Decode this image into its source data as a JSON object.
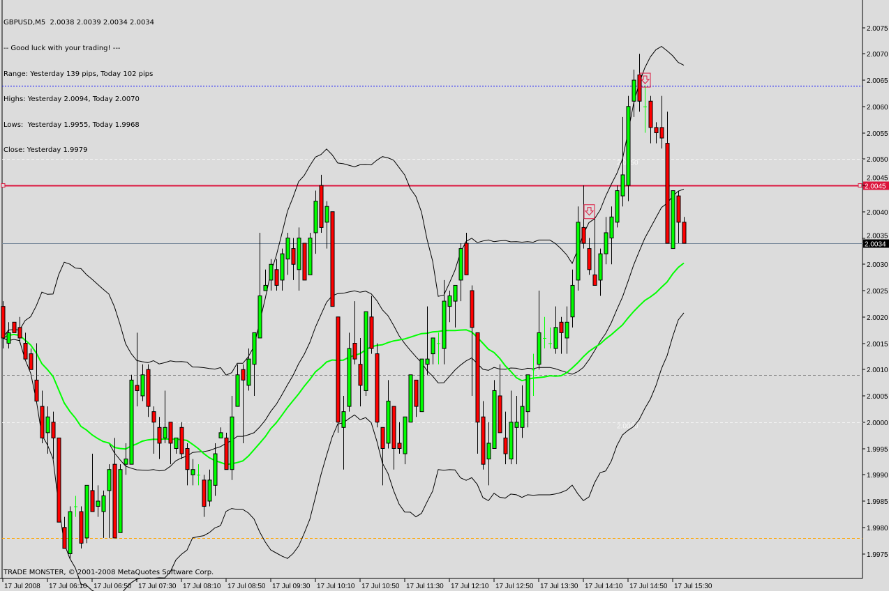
{
  "info": {
    "header": "GBPUSD,M5  2.0038 2.0039 2.0034 2.0034",
    "greeting": "-- Good luck with your trading! ---",
    "range": "Range: Yesterday 139 pips, Today 102 pips",
    "highs": "Highs: Yesterday 2.0094, Today 2.0070",
    "lows": "Lows:  Yesterday 1.9955, Today 1.9968",
    "close": "Close: Yesterday 1.9979"
  },
  "watermark": "TRADE MONSTER, © 2001-2008 MetaQuotes Software Corp.",
  "chart_data": {
    "type": "candlestick",
    "symbol": "GBPUSD",
    "timeframe": "M5",
    "ylim": [
      1.997,
      2.008
    ],
    "y_ticks": [
      "2.0075",
      "2.0070",
      "2.0065",
      "2.0060",
      "2.0055",
      "2.0050",
      "2.0045",
      "2.0040",
      "2.0035",
      "2.0030",
      "2.0025",
      "2.0020",
      "2.0015",
      "2.0010",
      "2.0005",
      "2.0000",
      "1.9995",
      "1.9990",
      "1.9985",
      "1.9980",
      "1.9975"
    ],
    "x_tick_labels": [
      "17 Jul 2008",
      "17 Jul 06:10",
      "17 Jul 06:50",
      "17 Jul 07:30",
      "17 Jul 08:10",
      "17 Jul 08:50",
      "17 Jul 09:30",
      "17 Jul 10:10",
      "17 Jul 10:50",
      "17 Jul 11:30",
      "17 Jul 12:10",
      "17 Jul 12:50",
      "17 Jul 13:30",
      "17 Jul 14:10",
      "17 Jul 14:50",
      "17 Jul 15:30"
    ],
    "candles_ohlc": [
      [
        2.0022,
        2.0023,
        2.0014,
        2.0016
      ],
      [
        2.0015,
        2.0019,
        2.0014,
        2.0017
      ],
      [
        2.0019,
        2.0019,
        2.0017,
        2.0017
      ],
      [
        2.0018,
        2.002,
        2.0015,
        2.0016
      ],
      [
        2.0015,
        2.0017,
        2.0012,
        2.0012
      ],
      [
        2.0013,
        2.0014,
        2.001,
        2.001
      ],
      [
        2.0008,
        2.0015,
        2.0004,
        2.0004
      ],
      [
        2.0003,
        2.0006,
        1.9996,
        1.9997
      ],
      [
        1.9998,
        2.0003,
        1.9994,
        2.0001
      ],
      [
        2.0,
        2.0002,
        1.9993,
        1.9997
      ],
      [
        1.9997,
        1.9997,
        1.9981,
        1.9981
      ],
      [
        1.998,
        1.9982,
        1.9976,
        1.9976
      ],
      [
        1.9975,
        1.9984,
        1.9974,
        1.9983
      ],
      [
        1.9984,
        1.9986,
        1.9982,
        1.9984
      ],
      [
        1.9983,
        1.9984,
        1.9976,
        1.9977
      ],
      [
        1.9978,
        1.9988,
        1.9977,
        1.9988
      ],
      [
        1.9987,
        1.9994,
        1.9983,
        1.9983
      ],
      [
        1.9984,
        1.9988,
        1.9982,
        1.9985
      ],
      [
        1.9983,
        1.9987,
        1.9978,
        1.9986
      ],
      [
        1.9987,
        1.9992,
        1.9978,
        1.9991
      ],
      [
        1.9992,
        1.9997,
        1.9978,
        1.9978
      ],
      [
        1.9979,
        1.9992,
        1.9979,
        1.9991
      ],
      [
        1.9992,
        1.9996,
        1.999,
        1.9993
      ],
      [
        1.9992,
        2.0009,
        1.9992,
        2.0008
      ],
      [
        2.0007,
        2.0017,
        2.0003,
        2.0006
      ],
      [
        2.0005,
        2.0011,
        2.0004,
        2.0009
      ],
      [
        2.001,
        2.0011,
        2.0001,
        2.0003
      ],
      [
        2.0002,
        2.0003,
        1.9994,
        2.0
      ],
      [
        1.9999,
        2.0001,
        1.9993,
        1.9996
      ],
      [
        1.9997,
        2.0006,
        1.9996,
        1.9999
      ],
      [
        2.0,
        2.0,
        1.9992,
        1.9996
      ],
      [
        1.9995,
        1.9997,
        1.9994,
        1.9997
      ],
      [
        1.9999,
        2.0,
        1.9993,
        1.9994
      ],
      [
        1.9995,
        1.9996,
        1.9988,
        1.9991
      ],
      [
        1.999,
        1.9993,
        1.9988,
        1.9991
      ],
      [
        1.999,
        1.9992,
        1.9988,
        1.999
      ],
      [
        1.9989,
        1.999,
        1.9982,
        1.9984
      ],
      [
        1.9985,
        1.9991,
        1.9984,
        1.9989
      ],
      [
        1.9988,
        1.9996,
        1.9986,
        1.9994
      ],
      [
        1.9997,
        1.9999,
        1.9997,
        1.9998
      ],
      [
        1.9997,
        1.9998,
        1.9991,
        1.9991
      ],
      [
        1.9991,
        2.0005,
        1.9989,
        2.0001
      ],
      [
        2.0003,
        2.0011,
        2.0003,
        2.0009
      ],
      [
        2.001,
        2.0011,
        1.9996,
        2.0008
      ],
      [
        2.0007,
        2.0014,
        2.0006,
        2.0012
      ],
      [
        2.0011,
        2.0017,
        2.0005,
        2.0017
      ],
      [
        2.0016,
        2.0036,
        2.0016,
        2.0024
      ],
      [
        2.0025,
        2.0029,
        2.0025,
        2.0026
      ],
      [
        2.0027,
        2.0031,
        2.0025,
        2.003
      ],
      [
        2.0029,
        2.0031,
        2.0025,
        2.0026
      ],
      [
        2.0027,
        2.0033,
        2.0025,
        2.0032
      ],
      [
        2.0031,
        2.0036,
        2.0028,
        2.0035
      ],
      [
        2.0033,
        2.0035,
        2.0027,
        2.003
      ],
      [
        2.0029,
        2.0037,
        2.0025,
        2.0035
      ],
      [
        2.0034,
        2.0034,
        2.0027,
        2.0027
      ],
      [
        2.0028,
        2.0036,
        2.0028,
        2.0035
      ],
      [
        2.0036,
        2.0044,
        2.0032,
        2.0042
      ],
      [
        2.0045,
        2.0047,
        2.0036,
        2.0037
      ],
      [
        2.0038,
        2.0042,
        2.0033,
        2.0041
      ],
      [
        2.004,
        2.004,
        2.0022,
        2.0022
      ],
      [
        2.002,
        2.002,
        1.9998,
        2.0
      ],
      [
        1.9999,
        2.0005,
        1.9991,
        2.0002
      ],
      [
        2.0003,
        2.0017,
        2.0002,
        2.0014
      ],
      [
        2.0015,
        2.0023,
        2.0011,
        2.0012
      ],
      [
        2.0011,
        2.0016,
        2.0003,
        2.0007
      ],
      [
        2.0006,
        2.0021,
        2.0005,
        2.0021
      ],
      [
        2.002,
        2.0024,
        2.0013,
        2.0014
      ],
      [
        2.0013,
        2.0015,
        1.9999,
        2.0
      ],
      [
        1.9999,
        1.9999,
        1.9988,
        1.9995
      ],
      [
        1.9996,
        2.0008,
        1.9995,
        2.0004
      ],
      [
        2.0003,
        2.0003,
        1.9991,
        1.9995
      ],
      [
        1.9996,
        2.0,
        1.9994,
        1.9995
      ],
      [
        1.9994,
        2.0001,
        1.9992,
        2.0001
      ],
      [
        2.0,
        2.0009,
        2.0,
        2.0009
      ],
      [
        2.0008,
        2.0008,
        2.0001,
        2.0003
      ],
      [
        2.0002,
        2.0012,
        2.0002,
        2.0012
      ],
      [
        2.0011,
        2.0022,
        2.0009,
        2.0012
      ],
      [
        2.0013,
        2.0016,
        2.0011,
        2.0016
      ],
      [
        2.0015,
        2.0017,
        2.0011,
        2.0015
      ],
      [
        2.0014,
        2.0027,
        2.0011,
        2.0023
      ],
      [
        2.0022,
        2.0025,
        2.0019,
        2.0024
      ],
      [
        2.0023,
        2.0026,
        2.0018,
        2.0026
      ],
      [
        2.0027,
        2.0034,
        2.0023,
        2.0033
      ],
      [
        2.0034,
        2.0036,
        2.0028,
        2.0028
      ],
      [
        2.0025,
        2.0026,
        2.0005,
        2.0018
      ],
      [
        2.0017,
        2.0017,
        1.9994,
        2.0
      ],
      [
        2.0001,
        2.0004,
        1.9991,
        1.9992
      ],
      [
        1.9993,
        2.0,
        1.9988,
        1.9996
      ],
      [
        1.9995,
        2.0008,
        1.9995,
        2.0006
      ],
      [
        2.0005,
        2.0011,
        1.9998,
        1.9998
      ],
      [
        1.9997,
        2.0002,
        1.9992,
        1.9994
      ],
      [
        1.9993,
        2.0006,
        1.9992,
        2.0
      ],
      [
        1.9999,
        2.0005,
        1.9992,
        2.0
      ],
      [
        1.9999,
        2.0007,
        1.9997,
        2.0003
      ],
      [
        2.0002,
        2.0009,
        1.9999,
        2.0009
      ],
      [
        2.001,
        2.0013,
        2.0005,
        2.001
      ],
      [
        2.0011,
        2.0025,
        2.001,
        2.0017
      ],
      [
        2.0016,
        2.002,
        2.0014,
        2.0016
      ],
      [
        2.0015,
        2.0018,
        2.0014,
        2.0015
      ],
      [
        2.0014,
        2.0022,
        2.0013,
        2.0018
      ],
      [
        2.0019,
        2.002,
        2.0013,
        2.0017
      ],
      [
        2.0016,
        2.0022,
        2.0013,
        2.0019
      ],
      [
        2.002,
        2.0029,
        2.0018,
        2.0026
      ],
      [
        2.0027,
        2.0041,
        2.0025,
        2.0038
      ],
      [
        2.0037,
        2.0045,
        2.0033,
        2.0034
      ],
      [
        2.0033,
        2.0035,
        2.0028,
        2.0029
      ],
      [
        2.0028,
        2.0039,
        2.0026,
        2.0026
      ],
      [
        2.0027,
        2.0033,
        2.0024,
        2.0032
      ],
      [
        2.0032,
        2.0039,
        2.003,
        2.0036
      ],
      [
        2.0035,
        2.0041,
        2.003,
        2.0039
      ],
      [
        2.0038,
        2.0045,
        2.0037,
        2.0044
      ],
      [
        2.0043,
        2.0058,
        2.0041,
        2.0047
      ],
      [
        2.0045,
        2.0062,
        2.0042,
        2.006
      ],
      [
        2.0061,
        2.0067,
        2.0058,
        2.0065
      ],
      [
        2.0066,
        2.007,
        2.0059,
        2.0061
      ],
      [
        2.006,
        2.0064,
        2.0055,
        2.006
      ],
      [
        2.0061,
        2.0062,
        2.0053,
        2.0056
      ],
      [
        2.0056,
        2.0057,
        2.0053,
        2.0055
      ],
      [
        2.0056,
        2.0062,
        2.0052,
        2.0054
      ],
      [
        2.0053,
        2.0059,
        2.0034,
        2.0034
      ],
      [
        2.0033,
        2.0044,
        2.0033,
        2.0044
      ],
      [
        2.0043,
        2.0044,
        2.0034,
        2.0038
      ],
      [
        2.0038,
        2.0039,
        2.0034,
        2.0034
      ]
    ],
    "indicators": [
      "bollinger-bands",
      "moving-average"
    ],
    "sell_signals": [
      {
        "bar": 105,
        "price": 2.004
      },
      {
        "bar": 115,
        "price": 2.0065
      }
    ],
    "horizontal_lines": [
      {
        "price": 2.0064,
        "style": "dotted",
        "color": "#0000ff"
      },
      {
        "price": 2.0045,
        "style": "solid",
        "color": "#dc143c",
        "label": "2.0045"
      },
      {
        "price": 2.0034,
        "style": "solid",
        "color": "#778899",
        "label": "2.0034"
      },
      {
        "price": 2.0009,
        "style": "dashed",
        "color": "#808080"
      },
      {
        "price": 1.9978,
        "style": "dashed",
        "color": "#ffa500"
      },
      {
        "price": 2.005,
        "style": "dashed",
        "color": "#f5f5f5",
        "text": "2.0050"
      },
      {
        "price": 2.0,
        "style": "dashed",
        "color": "#f5f5f5",
        "text": "2.0000"
      }
    ],
    "colors": {
      "bull": "#00ff00",
      "bear": "#ff0000",
      "ma": "#00ff00",
      "bands": "#000000",
      "background": "#dcdcdc"
    }
  }
}
